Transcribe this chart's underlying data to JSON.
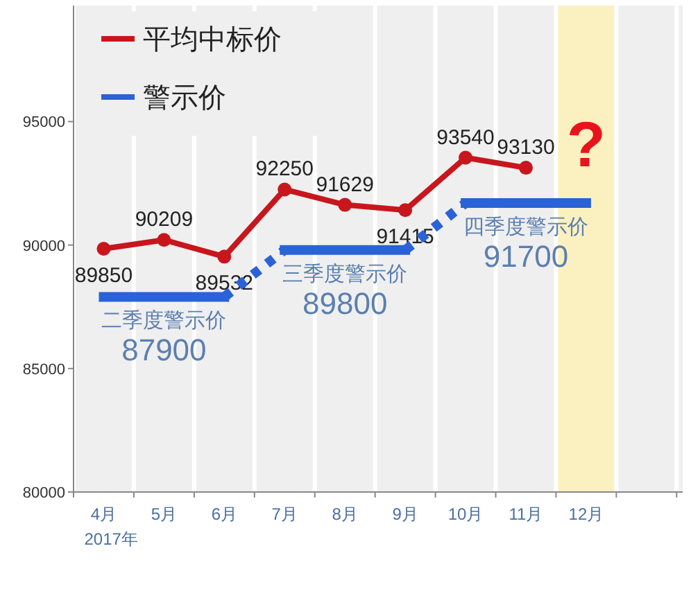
{
  "chart_data": {
    "type": "line",
    "categories": [
      "4月",
      "5月",
      "6月",
      "7月",
      "8月",
      "9月",
      "10月",
      "11月",
      "12月",
      null
    ],
    "series": [
      {
        "name": "平均中标价",
        "color": "#c8161d",
        "values": [
          89850,
          90209,
          89532,
          92250,
          91629,
          91415,
          93540,
          93130,
          null,
          null
        ],
        "data_labels": true,
        "marker": "circle"
      },
      {
        "name": "警示价",
        "color": "#2a62d8",
        "type": "step",
        "values": [
          87900,
          87900,
          87900,
          89800,
          89800,
          89800,
          91700,
          91700,
          91700,
          null
        ],
        "value_labels": [
          null,
          "87900",
          null,
          null,
          "89800",
          null,
          null,
          "91700",
          null,
          null
        ]
      }
    ],
    "ylim": [
      80000,
      99700
    ],
    "yticks": [
      80000,
      85000,
      90000,
      95000
    ],
    "grid": "x",
    "legend": "top left",
    "bands": [
      {
        "axis": "x",
        "from": "12月",
        "to": "12月",
        "color": "#fbf0c0"
      }
    ],
    "annotations": [
      "二季度警示价",
      "三季度警示价",
      "四季度警示价",
      "?",
      "2017年"
    ]
  }
}
